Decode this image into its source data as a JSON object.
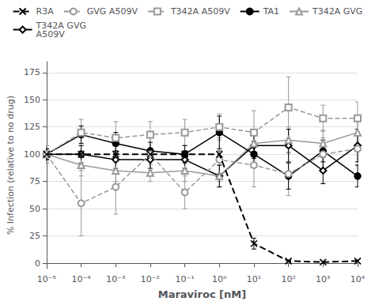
{
  "chart_data": {
    "type": "line",
    "xlabel": "Maraviroc [nM]",
    "ylabel": "% Infection (relative to no drug)",
    "log": "x",
    "grid": true,
    "legend": "top",
    "x": [
      1e-05,
      0.0001,
      0.001,
      0.01,
      0.1,
      1,
      10,
      100,
      1000,
      10000
    ],
    "xlim": [
      1e-05,
      10000
    ],
    "xticks": [
      {
        "value": 1e-05,
        "label": "10⁻⁵"
      },
      {
        "value": 0.0001,
        "label": "10⁻⁴"
      },
      {
        "value": 0.001,
        "label": "10⁻³"
      },
      {
        "value": 0.01,
        "label": "10⁻²"
      },
      {
        "value": 0.1,
        "label": "10⁻¹"
      },
      {
        "value": 1,
        "label": "10⁰"
      },
      {
        "value": 10,
        "label": "10¹"
      },
      {
        "value": 100,
        "label": "10²"
      },
      {
        "value": 1000,
        "label": "10³"
      },
      {
        "value": 10000,
        "label": "10⁴"
      }
    ],
    "ylim": [
      -5,
      185
    ],
    "yticks": [
      0,
      25,
      50,
      75,
      100,
      125,
      150,
      175
    ],
    "series": [
      {
        "name": "R3A",
        "color": "#000000",
        "line_style": "dashed",
        "marker": "x",
        "values": [
          100,
          100,
          100,
          100,
          100,
          100,
          18,
          2,
          1,
          2
        ],
        "yerr": [
          3,
          3,
          3,
          3,
          3,
          3,
          5,
          1,
          1,
          1
        ]
      },
      {
        "name": "GVG A509V",
        "color": "#999999",
        "line_style": "dashed",
        "marker": "open_circle",
        "values": [
          100,
          55,
          70,
          100,
          65,
          95,
          90,
          82,
          100,
          105
        ],
        "yerr": [
          5,
          30,
          25,
          15,
          15,
          20,
          20,
          20,
          15,
          15
        ]
      },
      {
        "name": "T342A A509V",
        "color": "#999999",
        "line_style": "dashed",
        "marker": "open_square",
        "values": [
          100,
          120,
          115,
          118,
          120,
          125,
          120,
          143,
          133,
          133
        ],
        "yerr": [
          8,
          12,
          15,
          12,
          12,
          12,
          20,
          28,
          12,
          15
        ]
      },
      {
        "name": "TA1",
        "color": "#000000",
        "line_style": "solid",
        "marker": "circle",
        "values": [
          100,
          118,
          110,
          103,
          100,
          120,
          100,
          80,
          103,
          80
        ],
        "yerr": [
          5,
          8,
          10,
          8,
          8,
          15,
          12,
          12,
          10,
          10
        ]
      },
      {
        "name": "T342A GVG",
        "color": "#999999",
        "line_style": "solid",
        "marker": "open_triangle",
        "values": [
          100,
          90,
          85,
          83,
          85,
          80,
          110,
          113,
          110,
          120
        ],
        "yerr": [
          8,
          10,
          10,
          8,
          10,
          10,
          12,
          12,
          12,
          15
        ]
      },
      {
        "name": "T342A GVG\nA509V",
        "color": "#000000",
        "line_style": "solid",
        "marker": "open_diamond",
        "values": [
          100,
          100,
          95,
          95,
          95,
          80,
          108,
          108,
          85,
          108
        ],
        "yerr": [
          5,
          8,
          8,
          8,
          8,
          10,
          12,
          15,
          12,
          15
        ]
      }
    ]
  }
}
